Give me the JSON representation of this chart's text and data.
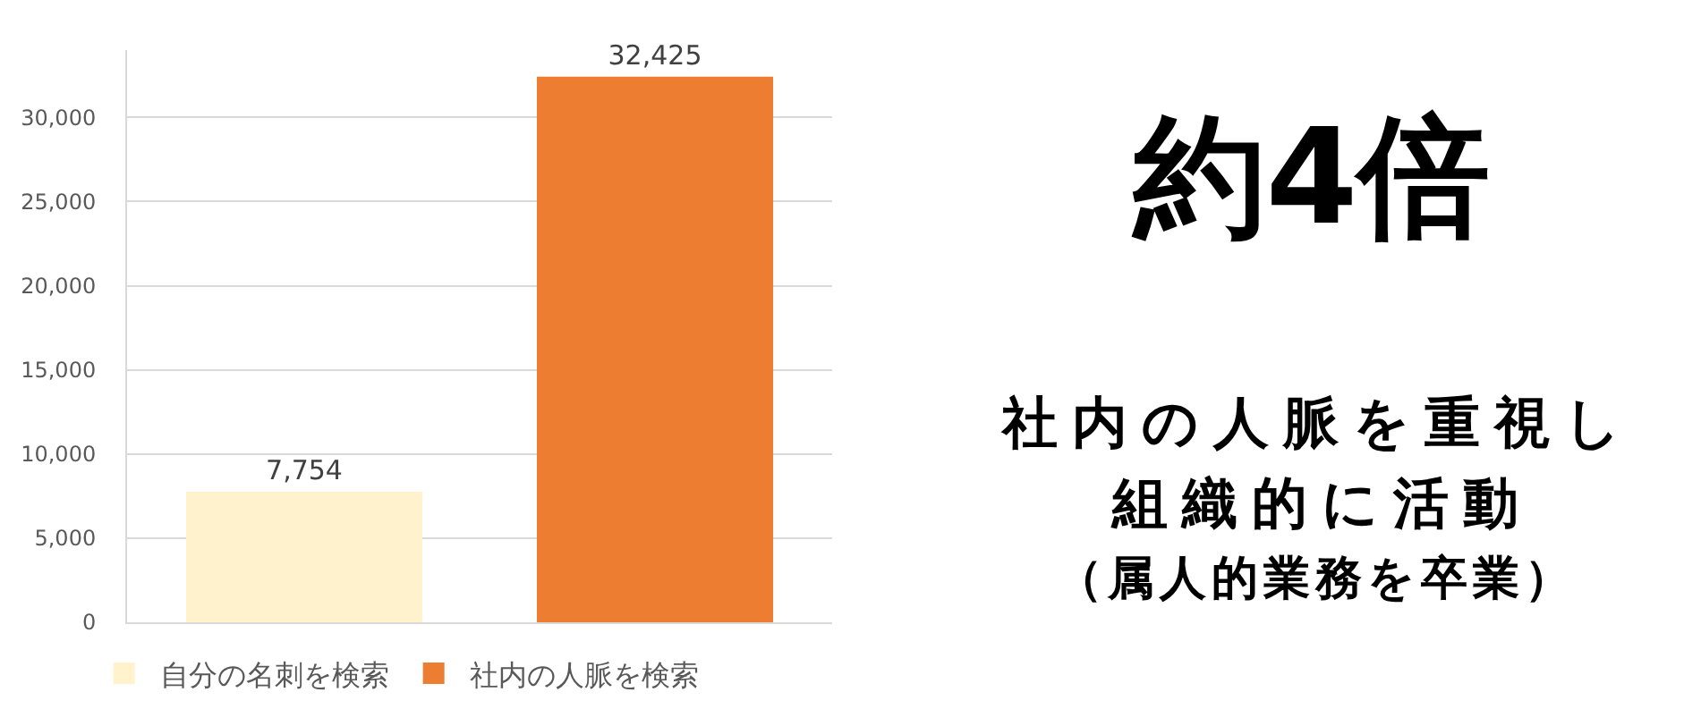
{
  "chart_data": {
    "type": "bar",
    "categories": [
      null
    ],
    "series": [
      {
        "name": "自分の名刺を検索",
        "color": "#fff2cc",
        "values": [
          7754
        ],
        "value_labels": [
          "7,754"
        ]
      },
      {
        "name": "社内の人脈を検索",
        "color": "#ed7d31",
        "values": [
          32425
        ],
        "value_labels": [
          "32,425"
        ]
      }
    ],
    "ylim": [
      0,
      34000
    ],
    "yticks": [
      0,
      {
        "value": 5000,
        "label": "5,000"
      },
      {
        "value": 10000,
        "label": "10,000"
      },
      {
        "value": 15000,
        "label": "15,000"
      },
      {
        "value": 20000,
        "label": "20,000"
      },
      {
        "value": 25000,
        "label": "25,000"
      },
      {
        "value": 30000,
        "label": "30,000"
      }
    ],
    "grid": "y",
    "legend": "bottom",
    "tick_labels": "y",
    "annotations": [
      "約4倍",
      "社内の人脈を重視し",
      "組織的に活動",
      "（属人的業務を卒業）"
    ]
  }
}
